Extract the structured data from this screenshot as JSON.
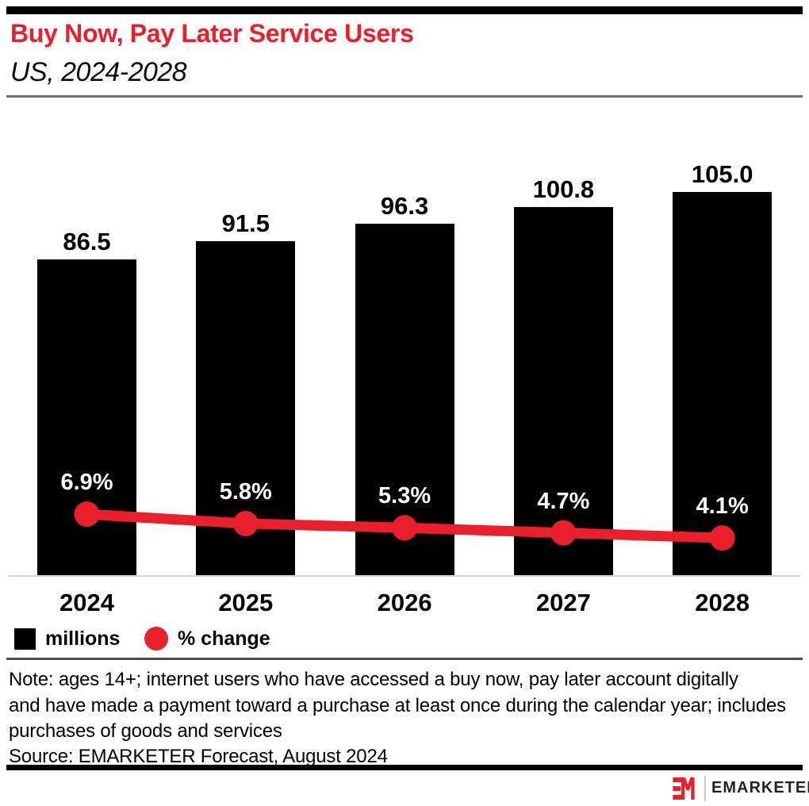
{
  "header": {
    "title": "Buy Now, Pay Later Service Users",
    "subtitle": "US, 2024-2028"
  },
  "chart_data": {
    "type": "bar",
    "subtype": "bar-with-line-overlay",
    "categories": [
      "2024",
      "2025",
      "2026",
      "2027",
      "2028"
    ],
    "series": [
      {
        "name": "millions",
        "type": "bar",
        "values": [
          86.5,
          91.5,
          96.3,
          100.8,
          105.0
        ],
        "labels": [
          "86.5",
          "91.5",
          "96.3",
          "100.8",
          "105.0"
        ],
        "color": "#000000"
      },
      {
        "name": "% change",
        "type": "line",
        "values": [
          6.9,
          5.8,
          5.3,
          4.7,
          4.1
        ],
        "labels": [
          "6.9%",
          "5.8%",
          "5.3%",
          "4.7%",
          "4.1%"
        ],
        "color": "#E9202C"
      }
    ],
    "legend": [
      {
        "label": "millions",
        "swatch": "square",
        "color": "#000000"
      },
      {
        "label": "% change",
        "swatch": "circle",
        "color": "#E9202C"
      }
    ],
    "legend_position": "bottom-left",
    "grid": false,
    "value_labels_shown": true
  },
  "note": {
    "lines": [
      "Note: ages 14+; internet users who have accessed a buy now, pay later account digitally",
      "and have made a payment toward a purchase at least once during the calendar year; includes",
      "purchases of goods and services"
    ]
  },
  "source": {
    "text": "Source: EMARKETER Forecast, August 2024"
  },
  "branding": {
    "logo_mark": "EM",
    "logo_text": "EMARKETER"
  },
  "colors": {
    "accent_red": "#E9202C",
    "bar_black": "#000000",
    "axis_line": "#CBD5EA",
    "header_divider": "#6E6E6E",
    "note_divider": "#4C4C4C",
    "percent_label_text": "#FFFFFF"
  }
}
